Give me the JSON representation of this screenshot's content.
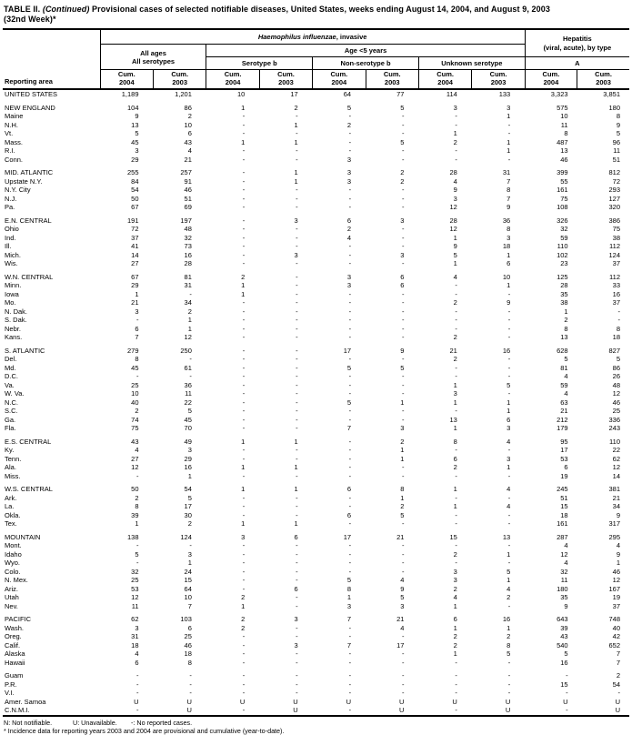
{
  "title": {
    "label": "TABLE II. ",
    "continued": "(Continued)",
    "text": " Provisional cases of selected notifiable diseases, United States, weeks ending August 14, 2004, and August 9, 2003",
    "week": "(32nd Week)*"
  },
  "header": {
    "reporting_area": "Reporting area",
    "hflu_italic": "Haemophilus influenzae",
    "hflu_suffix": ", invasive",
    "hepatitis_line1": "Hepatitis",
    "hepatitis_line2": "(viral, acute), by type",
    "all_ages": "All ages",
    "all_serotypes": "All serotypes",
    "age_under5": "Age <5 years",
    "serotype_b": "Serotype b",
    "non_serotype_b": "Non-serotype b",
    "unknown_serotype": "Unknown serotype",
    "hep_a": "A",
    "cum_label": "Cum.",
    "cum_years": [
      "2004",
      "2003"
    ]
  },
  "sections": [
    {
      "rows": [
        {
          "area": "UNITED STATES",
          "values": [
            "1,189",
            "1,201",
            "10",
            "17",
            "64",
            "77",
            "114",
            "133",
            "3,323",
            "3,851"
          ]
        }
      ]
    },
    {
      "rows": [
        {
          "area": "NEW ENGLAND",
          "values": [
            "104",
            "86",
            "1",
            "2",
            "5",
            "5",
            "3",
            "3",
            "575",
            "180"
          ]
        },
        {
          "area": "Maine",
          "values": [
            "9",
            "2",
            "-",
            "-",
            "-",
            "-",
            "-",
            "1",
            "10",
            "8"
          ]
        },
        {
          "area": "N.H.",
          "values": [
            "13",
            "10",
            "-",
            "1",
            "2",
            "-",
            "-",
            "-",
            "11",
            "9"
          ]
        },
        {
          "area": "Vt.",
          "values": [
            "5",
            "6",
            "-",
            "-",
            "-",
            "-",
            "1",
            "-",
            "8",
            "5"
          ]
        },
        {
          "area": "Mass.",
          "values": [
            "45",
            "43",
            "1",
            "1",
            "-",
            "5",
            "2",
            "1",
            "487",
            "96"
          ]
        },
        {
          "area": "R.I.",
          "values": [
            "3",
            "4",
            "-",
            "-",
            "-",
            "-",
            "-",
            "1",
            "13",
            "11"
          ]
        },
        {
          "area": "Conn.",
          "values": [
            "29",
            "21",
            "-",
            "-",
            "3",
            "-",
            "-",
            "-",
            "46",
            "51"
          ]
        }
      ]
    },
    {
      "rows": [
        {
          "area": "MID. ATLANTIC",
          "values": [
            "255",
            "257",
            "-",
            "1",
            "3",
            "2",
            "28",
            "31",
            "399",
            "812"
          ]
        },
        {
          "area": "Upstate N.Y.",
          "values": [
            "84",
            "91",
            "-",
            "1",
            "3",
            "2",
            "4",
            "7",
            "55",
            "72"
          ]
        },
        {
          "area": "N.Y. City",
          "values": [
            "54",
            "46",
            "-",
            "-",
            "-",
            "-",
            "9",
            "8",
            "161",
            "293"
          ]
        },
        {
          "area": "N.J.",
          "values": [
            "50",
            "51",
            "-",
            "-",
            "-",
            "-",
            "3",
            "7",
            "75",
            "127"
          ]
        },
        {
          "area": "Pa.",
          "values": [
            "67",
            "69",
            "-",
            "-",
            "-",
            "-",
            "12",
            "9",
            "108",
            "320"
          ]
        }
      ]
    },
    {
      "rows": [
        {
          "area": "E.N. CENTRAL",
          "values": [
            "191",
            "197",
            "-",
            "3",
            "6",
            "3",
            "28",
            "36",
            "326",
            "386"
          ]
        },
        {
          "area": "Ohio",
          "values": [
            "72",
            "48",
            "-",
            "-",
            "2",
            "-",
            "12",
            "8",
            "32",
            "75"
          ]
        },
        {
          "area": "Ind.",
          "values": [
            "37",
            "32",
            "-",
            "-",
            "4",
            "-",
            "1",
            "3",
            "59",
            "38"
          ]
        },
        {
          "area": "Ill.",
          "values": [
            "41",
            "73",
            "-",
            "-",
            "-",
            "-",
            "9",
            "18",
            "110",
            "112"
          ]
        },
        {
          "area": "Mich.",
          "values": [
            "14",
            "16",
            "-",
            "3",
            "-",
            "3",
            "5",
            "1",
            "102",
            "124"
          ]
        },
        {
          "area": "Wis.",
          "values": [
            "27",
            "28",
            "-",
            "-",
            "-",
            "-",
            "1",
            "6",
            "23",
            "37"
          ]
        }
      ]
    },
    {
      "rows": [
        {
          "area": "W.N. CENTRAL",
          "values": [
            "67",
            "81",
            "2",
            "-",
            "3",
            "6",
            "4",
            "10",
            "125",
            "112"
          ]
        },
        {
          "area": "Minn.",
          "values": [
            "29",
            "31",
            "1",
            "-",
            "3",
            "6",
            "-",
            "1",
            "28",
            "33"
          ]
        },
        {
          "area": "Iowa",
          "values": [
            "1",
            "-",
            "1",
            "-",
            "-",
            "-",
            "-",
            "-",
            "35",
            "16"
          ]
        },
        {
          "area": "Mo.",
          "values": [
            "21",
            "34",
            "-",
            "-",
            "-",
            "-",
            "2",
            "9",
            "38",
            "37"
          ]
        },
        {
          "area": "N. Dak.",
          "values": [
            "3",
            "2",
            "-",
            "-",
            "-",
            "-",
            "-",
            "-",
            "1",
            "-"
          ]
        },
        {
          "area": "S. Dak.",
          "values": [
            "-",
            "1",
            "-",
            "-",
            "-",
            "-",
            "-",
            "-",
            "2",
            "-"
          ]
        },
        {
          "area": "Nebr.",
          "values": [
            "6",
            "1",
            "-",
            "-",
            "-",
            "-",
            "-",
            "-",
            "8",
            "8"
          ]
        },
        {
          "area": "Kans.",
          "values": [
            "7",
            "12",
            "-",
            "-",
            "-",
            "-",
            "2",
            "-",
            "13",
            "18"
          ]
        }
      ]
    },
    {
      "rows": [
        {
          "area": "S. ATLANTIC",
          "values": [
            "279",
            "250",
            "-",
            "-",
            "17",
            "9",
            "21",
            "16",
            "628",
            "827"
          ]
        },
        {
          "area": "Del.",
          "values": [
            "8",
            "-",
            "-",
            "-",
            "-",
            "-",
            "2",
            "-",
            "5",
            "5"
          ]
        },
        {
          "area": "Md.",
          "values": [
            "45",
            "61",
            "-",
            "-",
            "5",
            "5",
            "-",
            "-",
            "81",
            "86"
          ]
        },
        {
          "area": "D.C.",
          "values": [
            "-",
            "-",
            "-",
            "-",
            "-",
            "-",
            "-",
            "-",
            "4",
            "26"
          ]
        },
        {
          "area": "Va.",
          "values": [
            "25",
            "36",
            "-",
            "-",
            "-",
            "-",
            "1",
            "5",
            "59",
            "48"
          ]
        },
        {
          "area": "W. Va.",
          "values": [
            "10",
            "11",
            "-",
            "-",
            "-",
            "-",
            "3",
            "-",
            "4",
            "12"
          ]
        },
        {
          "area": "N.C.",
          "values": [
            "40",
            "22",
            "-",
            "-",
            "5",
            "1",
            "1",
            "1",
            "63",
            "46"
          ]
        },
        {
          "area": "S.C.",
          "values": [
            "2",
            "5",
            "-",
            "-",
            "-",
            "-",
            "-",
            "1",
            "21",
            "25"
          ]
        },
        {
          "area": "Ga.",
          "values": [
            "74",
            "45",
            "-",
            "-",
            "-",
            "-",
            "13",
            "6",
            "212",
            "336"
          ]
        },
        {
          "area": "Fla.",
          "values": [
            "75",
            "70",
            "-",
            "-",
            "7",
            "3",
            "1",
            "3",
            "179",
            "243"
          ]
        }
      ]
    },
    {
      "rows": [
        {
          "area": "E.S. CENTRAL",
          "values": [
            "43",
            "49",
            "1",
            "1",
            "-",
            "2",
            "8",
            "4",
            "95",
            "110"
          ]
        },
        {
          "area": "Ky.",
          "values": [
            "4",
            "3",
            "-",
            "-",
            "-",
            "1",
            "-",
            "-",
            "17",
            "22"
          ]
        },
        {
          "area": "Tenn.",
          "values": [
            "27",
            "29",
            "-",
            "-",
            "-",
            "1",
            "6",
            "3",
            "53",
            "62"
          ]
        },
        {
          "area": "Ala.",
          "values": [
            "12",
            "16",
            "1",
            "1",
            "-",
            "-",
            "2",
            "1",
            "6",
            "12"
          ]
        },
        {
          "area": "Miss.",
          "values": [
            "-",
            "1",
            "-",
            "-",
            "-",
            "-",
            "-",
            "-",
            "19",
            "14"
          ]
        }
      ]
    },
    {
      "rows": [
        {
          "area": "W.S. CENTRAL",
          "values": [
            "50",
            "54",
            "1",
            "1",
            "6",
            "8",
            "1",
            "4",
            "245",
            "381"
          ]
        },
        {
          "area": "Ark.",
          "values": [
            "2",
            "5",
            "-",
            "-",
            "-",
            "1",
            "-",
            "-",
            "51",
            "21"
          ]
        },
        {
          "area": "La.",
          "values": [
            "8",
            "17",
            "-",
            "-",
            "-",
            "2",
            "1",
            "4",
            "15",
            "34"
          ]
        },
        {
          "area": "Okla.",
          "values": [
            "39",
            "30",
            "-",
            "-",
            "6",
            "5",
            "-",
            "-",
            "18",
            "9"
          ]
        },
        {
          "area": "Tex.",
          "values": [
            "1",
            "2",
            "1",
            "1",
            "-",
            "-",
            "-",
            "-",
            "161",
            "317"
          ]
        }
      ]
    },
    {
      "rows": [
        {
          "area": "MOUNTAIN",
          "values": [
            "138",
            "124",
            "3",
            "6",
            "17",
            "21",
            "15",
            "13",
            "287",
            "295"
          ]
        },
        {
          "area": "Mont.",
          "values": [
            "-",
            "-",
            "-",
            "-",
            "-",
            "-",
            "-",
            "-",
            "4",
            "4"
          ]
        },
        {
          "area": "Idaho",
          "values": [
            "5",
            "3",
            "-",
            "-",
            "-",
            "-",
            "2",
            "1",
            "12",
            "9"
          ]
        },
        {
          "area": "Wyo.",
          "values": [
            "-",
            "1",
            "-",
            "-",
            "-",
            "-",
            "-",
            "-",
            "4",
            "1"
          ]
        },
        {
          "area": "Colo.",
          "values": [
            "32",
            "24",
            "-",
            "-",
            "-",
            "-",
            "3",
            "5",
            "32",
            "46"
          ]
        },
        {
          "area": "N. Mex.",
          "values": [
            "25",
            "15",
            "-",
            "-",
            "5",
            "4",
            "3",
            "1",
            "11",
            "12"
          ]
        },
        {
          "area": "Ariz.",
          "values": [
            "53",
            "64",
            "-",
            "6",
            "8",
            "9",
            "2",
            "4",
            "180",
            "167"
          ]
        },
        {
          "area": "Utah",
          "values": [
            "12",
            "10",
            "2",
            "-",
            "1",
            "5",
            "4",
            "2",
            "35",
            "19"
          ]
        },
        {
          "area": "Nev.",
          "values": [
            "11",
            "7",
            "1",
            "-",
            "3",
            "3",
            "1",
            "-",
            "9",
            "37"
          ]
        }
      ]
    },
    {
      "rows": [
        {
          "area": "PACIFIC",
          "values": [
            "62",
            "103",
            "2",
            "3",
            "7",
            "21",
            "6",
            "16",
            "643",
            "748"
          ]
        },
        {
          "area": "Wash.",
          "values": [
            "3",
            "6",
            "2",
            "-",
            "-",
            "4",
            "1",
            "1",
            "39",
            "40"
          ]
        },
        {
          "area": "Oreg.",
          "values": [
            "31",
            "25",
            "-",
            "-",
            "-",
            "-",
            "2",
            "2",
            "43",
            "42"
          ]
        },
        {
          "area": "Calif.",
          "values": [
            "18",
            "46",
            "-",
            "3",
            "7",
            "17",
            "2",
            "8",
            "540",
            "652"
          ]
        },
        {
          "area": "Alaska",
          "values": [
            "4",
            "18",
            "-",
            "-",
            "-",
            "-",
            "1",
            "5",
            "5",
            "7"
          ]
        },
        {
          "area": "Hawaii",
          "values": [
            "6",
            "8",
            "-",
            "-",
            "-",
            "-",
            "-",
            "-",
            "16",
            "7"
          ]
        }
      ]
    },
    {
      "rows": [
        {
          "area": "Guam",
          "values": [
            "-",
            "-",
            "-",
            "-",
            "-",
            "-",
            "-",
            "-",
            "-",
            "2"
          ]
        },
        {
          "area": "P.R.",
          "values": [
            "-",
            "-",
            "-",
            "-",
            "-",
            "-",
            "-",
            "-",
            "15",
            "54"
          ]
        },
        {
          "area": "V.I.",
          "values": [
            "-",
            "-",
            "-",
            "-",
            "-",
            "-",
            "-",
            "-",
            "-",
            "-"
          ]
        },
        {
          "area": "Amer. Samoa",
          "values": [
            "U",
            "U",
            "U",
            "U",
            "U",
            "U",
            "U",
            "U",
            "U",
            "U"
          ]
        },
        {
          "area": "C.N.M.I.",
          "values": [
            "-",
            "U",
            "-",
            "U",
            "-",
            "U",
            "-",
            "U",
            "-",
            "U"
          ]
        }
      ]
    }
  ],
  "footnotes": {
    "not_notifiable": "N: Not notifiable.",
    "unavailable": "U: Unavailable.",
    "no_cases": "-: No reported cases.",
    "incidence": "* Incidence data for reporting years 2003 and 2004 are provisional and cumulative (year-to-date)."
  }
}
